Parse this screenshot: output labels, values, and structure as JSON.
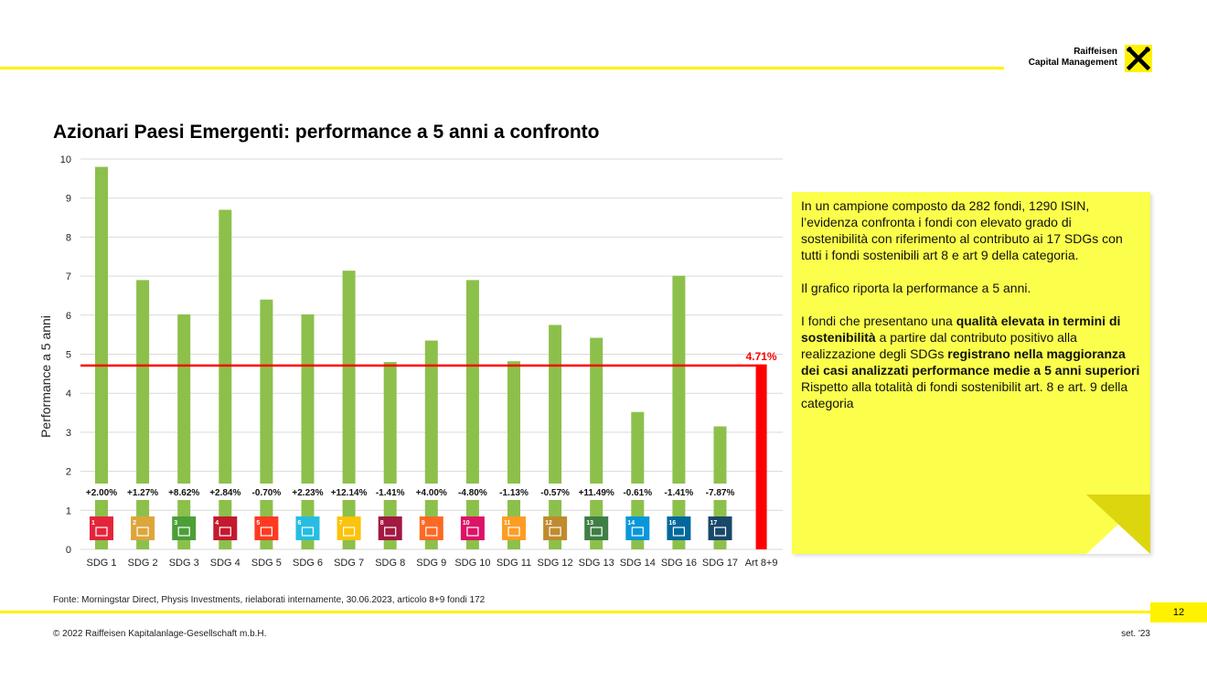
{
  "header": {
    "logo_line1": "Raiffeisen",
    "logo_line2": "Capital Management",
    "accent_color": "#fff200"
  },
  "title": "Azionari Paesi Emergenti: performance a 5 anni a confronto",
  "chart_data": {
    "type": "bar",
    "categories": [
      "SDG 1",
      "SDG 2",
      "SDG 3",
      "SDG 4",
      "SDG 5",
      "SDG 6",
      "SDG 7",
      "SDG 8",
      "SDG 9",
      "SDG 10",
      "SDG 11",
      "SDG 12",
      "SDG 13",
      "SDG 14",
      "SDG 16",
      "SDG 17",
      "Art 8+9"
    ],
    "values": [
      9.8,
      6.9,
      6.02,
      8.7,
      6.4,
      6.02,
      7.14,
      4.8,
      5.35,
      6.9,
      4.82,
      5.75,
      5.42,
      3.52,
      7.01,
      3.15,
      4.71
    ],
    "diff_labels": [
      "+2.00%",
      "+1.27%",
      "+8.62%",
      "+2.84%",
      "-0.70%",
      "+2.23%",
      "+12.14%",
      "-1.41%",
      "+4.00%",
      "-4.80%",
      "-1.13%",
      "-0.57%",
      "+11.49%",
      "-0.61%",
      "-1.41%",
      "-7.87%"
    ],
    "sdg_numbers": [
      "1",
      "2",
      "3",
      "4",
      "5",
      "6",
      "7",
      "8",
      "9",
      "10",
      "11",
      "12",
      "13",
      "14",
      "16",
      "17"
    ],
    "sdg_colors": [
      "#e5243b",
      "#dda63a",
      "#4c9f38",
      "#c5192d",
      "#ff3a21",
      "#26bde2",
      "#fcc30b",
      "#a21942",
      "#fd6925",
      "#dd1367",
      "#fd9d24",
      "#bf8b2e",
      "#3f7e44",
      "#0a97d9",
      "#00689d",
      "#19486a"
    ],
    "reference_line": {
      "value": 4.71,
      "label": "4.71%",
      "color": "#ff0000"
    },
    "bar_color": "#8cc04b",
    "highlight_bar_color": "#ff0000",
    "ylabel": "Performance a 5 anni",
    "xlabel": "",
    "ylim": [
      0,
      10
    ],
    "yticks": [
      "0",
      "1",
      "2",
      "3",
      "4",
      "5",
      "6",
      "7",
      "8",
      "9",
      "10"
    ],
    "grid": true
  },
  "note": {
    "p1": "In un campione composto da 282 fondi, 1290 ISIN, l’evidenza confronta i fondi con elevato grado di sostenibilità con riferimento al contributo ai 17 SDGs con tutti i fondi sostenibili art 8 e art 9 della categoria.",
    "p2": "Il grafico riporta la performance a 5 anni.",
    "p3a": "I fondi che presentano una ",
    "p3b": "qualità elevata in termini di sostenibilità",
    "p3c": " a partire dal contributo positivo alla realizzazione degli SDGs ",
    "p3d": "registrano nella maggioranza dei casi analizzati performance medie a 5 anni superiori",
    "p3e": " Rispetto alla totalità di fondi sostenibilit art. 8 e art. 9 della categoria"
  },
  "footer": {
    "source": "Fonte: Morningstar Direct, Physis Investments, rielaborati internamente, 30.06.2023, articolo 8+9 fondi 172",
    "page_number": "12",
    "copyright": "© 2022 Raiffeisen Kapitalanlage-Gesellschaft m.b.H.",
    "date": "set. '23"
  }
}
